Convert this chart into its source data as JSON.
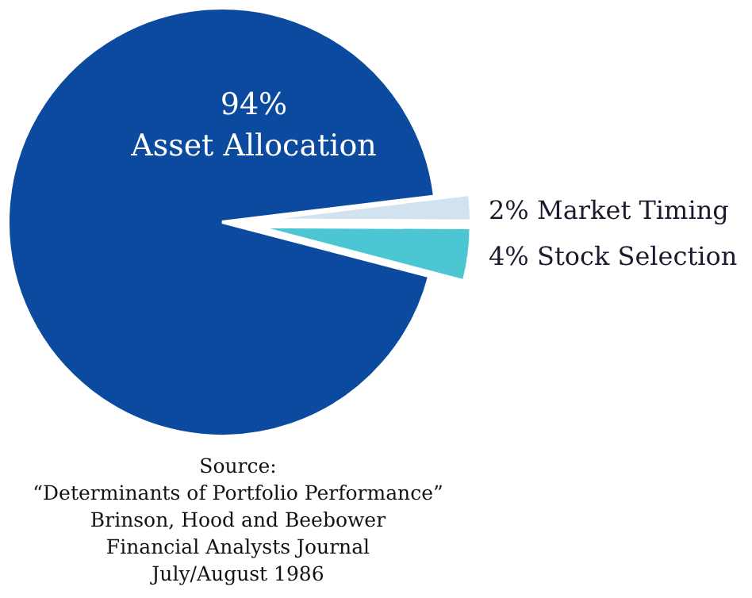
{
  "chart_data": {
    "type": "pie",
    "categories": [
      "Asset Allocation",
      "Market Timing",
      "Stock Selection"
    ],
    "values": [
      94,
      2,
      4
    ],
    "value_labels": [
      "94%",
      "2%",
      "4%"
    ],
    "colors": [
      "#0b4a9e",
      "#d3e2ef",
      "#4cc6d3"
    ],
    "annotations": [
      "Source:",
      "“Determinants of Portfolio Performance”",
      "Brinson, Hood and Beebower",
      "Financial Analysts Journal",
      "July/August 1986"
    ]
  }
}
